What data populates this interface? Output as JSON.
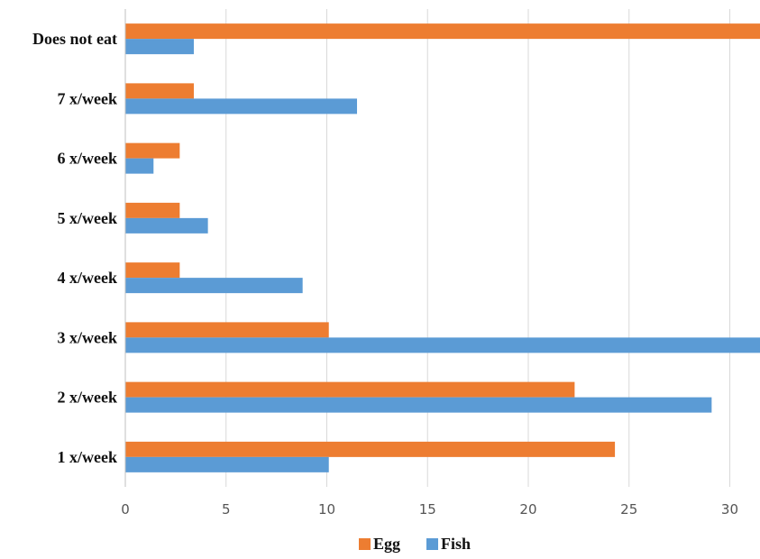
{
  "chart_data": {
    "type": "bar",
    "orientation": "horizontal",
    "categories": [
      "Does not eat",
      "7 x/week",
      "6 x/week",
      "5 x/week",
      "4 x/week",
      "3 x/week",
      "2 x/week",
      "1 x/week"
    ],
    "series": [
      {
        "name": "Egg",
        "color": "#ED7D31",
        "values": [
          32,
          3.4,
          2.7,
          2.7,
          2.7,
          10.1,
          22.3,
          24.3
        ]
      },
      {
        "name": "Fish",
        "color": "#5B9BD5",
        "values": [
          3.4,
          11.5,
          1.4,
          4.1,
          8.8,
          32,
          29.1,
          10.1
        ]
      }
    ],
    "xticks": [
      0,
      5,
      10,
      15,
      20,
      25,
      30
    ],
    "xlim": [
      0,
      31.5
    ],
    "grid": true,
    "legend": "bottom",
    "title": "",
    "xlabel": "",
    "ylabel": ""
  }
}
